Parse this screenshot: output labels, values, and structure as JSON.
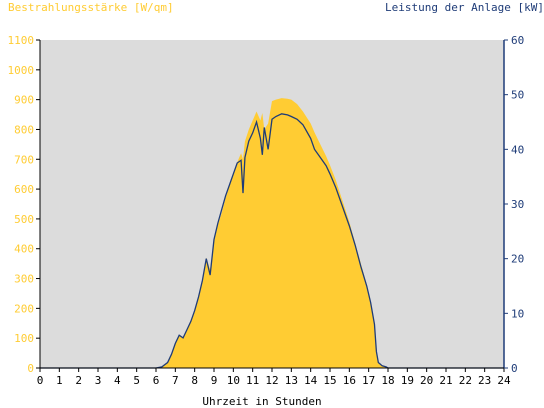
{
  "chart_data": {
    "type": "area",
    "left_axis_label": "Bestrahlungsstärke [W/qm]",
    "right_axis_label": "Leistung der Anlage [kW]",
    "xlabel": "Uhrzeit in Stunden",
    "xlim": [
      0,
      24
    ],
    "ylim_left": [
      0,
      1100
    ],
    "ylim_right": [
      0,
      60
    ],
    "x_ticks": [
      "0",
      "1",
      "2",
      "3",
      "4",
      "5",
      "6",
      "7",
      "8",
      "9",
      "10",
      "11",
      "12",
      "13",
      "14",
      "15",
      "16",
      "17",
      "18",
      "19",
      "20",
      "21",
      "22",
      "23",
      "24"
    ],
    "y_ticks_left": [
      "0",
      "100",
      "200",
      "300",
      "400",
      "500",
      "600",
      "700",
      "800",
      "900",
      "1000",
      "1100"
    ],
    "y_ticks_right": [
      "0",
      "10",
      "20",
      "30",
      "40",
      "50",
      "60"
    ],
    "grid": false,
    "colors": {
      "irradiance_fill": "#ffcc33",
      "power_line": "#1f3c78",
      "plot_background": "#dcdcdc",
      "left_axis_text": "#ffcc33",
      "right_axis_text": "#1f3c78"
    },
    "series": [
      {
        "name": "Bestrahlungsstärke",
        "axis": "left",
        "style": "area",
        "points": [
          [
            0,
            0
          ],
          [
            6.0,
            0
          ],
          [
            6.3,
            3
          ],
          [
            6.6,
            20
          ],
          [
            6.8,
            45
          ],
          [
            7.0,
            80
          ],
          [
            7.2,
            110
          ],
          [
            7.4,
            100
          ],
          [
            7.6,
            130
          ],
          [
            7.8,
            160
          ],
          [
            8.0,
            195
          ],
          [
            8.2,
            240
          ],
          [
            8.4,
            290
          ],
          [
            8.6,
            370
          ],
          [
            8.8,
            330
          ],
          [
            9.0,
            430
          ],
          [
            9.2,
            480
          ],
          [
            9.4,
            520
          ],
          [
            9.6,
            570
          ],
          [
            9.8,
            610
          ],
          [
            10.0,
            650
          ],
          [
            10.2,
            690
          ],
          [
            10.4,
            720
          ],
          [
            10.5,
            700
          ],
          [
            10.6,
            760
          ],
          [
            10.8,
            800
          ],
          [
            11.0,
            830
          ],
          [
            11.2,
            860
          ],
          [
            11.4,
            830
          ],
          [
            11.5,
            855
          ],
          [
            11.6,
            800
          ],
          [
            11.8,
            820
          ],
          [
            12.0,
            895
          ],
          [
            12.2,
            900
          ],
          [
            12.5,
            905
          ],
          [
            12.8,
            903
          ],
          [
            13.0,
            900
          ],
          [
            13.3,
            885
          ],
          [
            13.6,
            860
          ],
          [
            14.0,
            820
          ],
          [
            14.2,
            790
          ],
          [
            14.5,
            750
          ],
          [
            14.8,
            710
          ],
          [
            15.0,
            680
          ],
          [
            15.3,
            630
          ],
          [
            15.6,
            570
          ],
          [
            16.0,
            490
          ],
          [
            16.3,
            420
          ],
          [
            16.6,
            350
          ],
          [
            16.9,
            280
          ],
          [
            17.1,
            220
          ],
          [
            17.3,
            150
          ],
          [
            17.4,
            60
          ],
          [
            17.5,
            20
          ],
          [
            17.7,
            8
          ],
          [
            17.9,
            3
          ],
          [
            18.0,
            0
          ],
          [
            24,
            0
          ]
        ]
      },
      {
        "name": "Leistung der Anlage",
        "axis": "right",
        "style": "line",
        "points": [
          [
            0,
            0
          ],
          [
            6.0,
            0
          ],
          [
            6.3,
            0.2
          ],
          [
            6.6,
            1
          ],
          [
            6.8,
            2.5
          ],
          [
            7.0,
            4.5
          ],
          [
            7.2,
            6
          ],
          [
            7.4,
            5.5
          ],
          [
            7.6,
            7
          ],
          [
            7.8,
            8.5
          ],
          [
            8.0,
            10.5
          ],
          [
            8.2,
            13
          ],
          [
            8.4,
            16
          ],
          [
            8.6,
            20
          ],
          [
            8.8,
            17
          ],
          [
            9.0,
            23.5
          ],
          [
            9.2,
            26.5
          ],
          [
            9.4,
            29
          ],
          [
            9.6,
            31.5
          ],
          [
            9.8,
            33.5
          ],
          [
            10.0,
            35.5
          ],
          [
            10.2,
            37.5
          ],
          [
            10.4,
            38
          ],
          [
            10.5,
            32
          ],
          [
            10.6,
            38.5
          ],
          [
            10.8,
            41.5
          ],
          [
            11.0,
            43
          ],
          [
            11.2,
            45
          ],
          [
            11.4,
            42
          ],
          [
            11.5,
            39
          ],
          [
            11.6,
            44
          ],
          [
            11.8,
            40
          ],
          [
            12.0,
            45.5
          ],
          [
            12.2,
            46
          ],
          [
            12.5,
            46.5
          ],
          [
            12.8,
            46.3
          ],
          [
            13.0,
            46
          ],
          [
            13.3,
            45.5
          ],
          [
            13.6,
            44.5
          ],
          [
            14.0,
            42
          ],
          [
            14.2,
            40
          ],
          [
            14.5,
            38.5
          ],
          [
            14.8,
            37
          ],
          [
            15.0,
            35.5
          ],
          [
            15.3,
            33
          ],
          [
            15.6,
            30
          ],
          [
            16.0,
            26
          ],
          [
            16.3,
            22.5
          ],
          [
            16.6,
            18.5
          ],
          [
            16.9,
            15
          ],
          [
            17.1,
            12
          ],
          [
            17.3,
            8
          ],
          [
            17.4,
            3
          ],
          [
            17.5,
            1
          ],
          [
            17.7,
            0.4
          ],
          [
            17.9,
            0.2
          ],
          [
            18.0,
            0
          ],
          [
            24,
            0
          ]
        ]
      }
    ]
  }
}
